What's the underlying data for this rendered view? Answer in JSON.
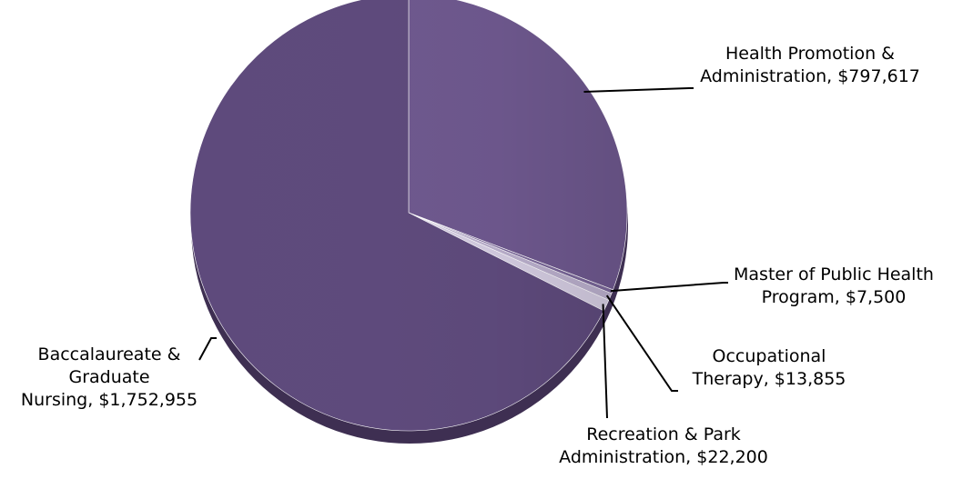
{
  "chart_data": {
    "type": "pie",
    "title": "",
    "slices": [
      {
        "label_lines": [
          "Health Promotion &",
          "Administration,  $797,617"
        ],
        "category": "Health Promotion & Administration",
        "value": 797617,
        "color": "#6e588e"
      },
      {
        "label_lines": [
          "Master of Public Health",
          "Program,  $7,500"
        ],
        "category": "Master of Public Health Program",
        "value": 7500,
        "color": "#7a6799"
      },
      {
        "label_lines": [
          "Occupational",
          "Therapy,  $13,855"
        ],
        "category": "Occupational Therapy",
        "value": 13855,
        "color": "#b9aecb"
      },
      {
        "label_lines": [
          "Recreation & Park",
          "Administration,  $22,200"
        ],
        "category": "Recreation & Park Administration",
        "value": 22200,
        "color": "#d3cbe0"
      },
      {
        "label_lines": [
          "Baccalaureate &",
          "Graduate",
          "Nursing,  $1,752,955"
        ],
        "category": "Baccalaureate & Graduate Nursing",
        "value": 1752955,
        "color": "#5e4a7c"
      }
    ]
  }
}
